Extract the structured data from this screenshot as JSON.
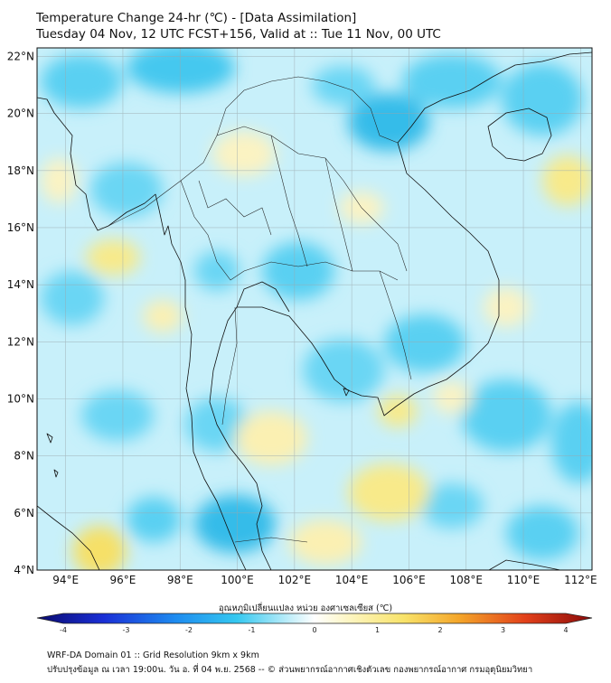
{
  "title_line1": "Temperature Change 24-hr (℃) - [Data Assimilation]",
  "title_line2": "Tuesday 04 Nov, 12 UTC FCST+156, Valid at :: Tue 11 Nov, 00 UTC",
  "colorbar": {
    "title": "อุณหภูมิเปลี่ยนแปลง หน่วย องศาเซลเซียส (℃)",
    "min": -4,
    "max": 4,
    "ticks": [
      "-4",
      "-3",
      "-2",
      "-1",
      "0",
      "1",
      "2",
      "3",
      "4"
    ]
  },
  "map": {
    "lat_labels": [
      "22°N",
      "20°N",
      "18°N",
      "16°N",
      "14°N",
      "12°N",
      "10°N",
      "8°N",
      "6°N",
      "4°N"
    ],
    "lon_labels": [
      "94°E",
      "96°E",
      "98°E",
      "100°E",
      "102°E",
      "104°E",
      "106°E",
      "108°E",
      "110°E",
      "112°E"
    ],
    "lat_range": [
      4,
      22.3
    ],
    "lon_range": [
      93,
      112.4
    ],
    "background_color": "#c8f0fa",
    "coastline_color": "#111111"
  },
  "footer_line1": "WRF-DA Domain 01 :: Grid Resolution 9km x 9km",
  "footer_line2": "ปรับปรุงข้อมูล ณ เวลา 19:00น. วัน อ. ที่ 04 พ.ย. 2568 -- © ส่วนพยากรณ์อากาศเชิงตัวเลข กองพยากรณ์อากาศ กรมอุตุนิยมวิทยา"
}
